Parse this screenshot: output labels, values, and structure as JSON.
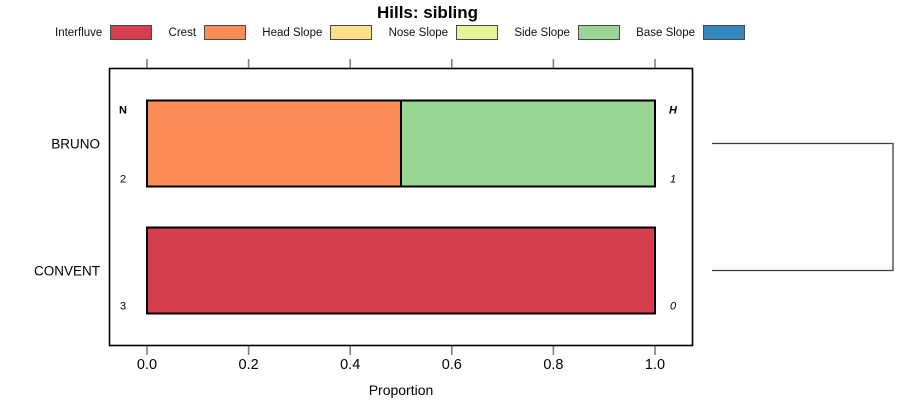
{
  "title": "Hills: sibling",
  "legend": [
    {
      "label": "Interfluve",
      "color": "#d53e4f"
    },
    {
      "label": "Crest",
      "color": "#fc8d59"
    },
    {
      "label": "Head Slope",
      "color": "#fee08b"
    },
    {
      "label": "Nose Slope",
      "color": "#e6f598"
    },
    {
      "label": "Side Slope",
      "color": "#99d594"
    },
    {
      "label": "Base Slope",
      "color": "#3288bd"
    }
  ],
  "chart_data": {
    "type": "bar",
    "orientation": "horizontal",
    "stacked": true,
    "title": "Hills: sibling",
    "xlabel": "Proportion",
    "xlim": [
      0,
      1
    ],
    "xticks": [
      "0.0",
      "0.2",
      "0.4",
      "0.6",
      "0.8",
      "1.0"
    ],
    "xtick_values": [
      0.0,
      0.2,
      0.4,
      0.6,
      0.8,
      1.0
    ],
    "grid": false,
    "legend_position": "top",
    "categories": [
      "BRUNO",
      "CONVENT"
    ],
    "series": [
      {
        "name": "Interfluve",
        "color": "#d53e4f",
        "values": [
          0.0,
          1.0
        ]
      },
      {
        "name": "Crest",
        "color": "#fc8d59",
        "values": [
          0.5,
          0.0
        ]
      },
      {
        "name": "Head Slope",
        "color": "#fee08b",
        "values": [
          0.0,
          0.0
        ]
      },
      {
        "name": "Nose Slope",
        "color": "#e6f598",
        "values": [
          0.0,
          0.0
        ]
      },
      {
        "name": "Side Slope",
        "color": "#99d594",
        "values": [
          0.5,
          0.0
        ]
      },
      {
        "name": "Base Slope",
        "color": "#3288bd",
        "values": [
          0.0,
          0.0
        ]
      }
    ],
    "row_annotations": {
      "left_header": "N",
      "right_header": "H",
      "left_values": [
        "2",
        "3"
      ],
      "right_values": [
        "1",
        "0"
      ]
    },
    "dendrogram": {
      "linked_rows": [
        "BRUNO",
        "CONVENT"
      ]
    }
  },
  "style": {
    "bar_border": "#000000",
    "box_border": "#000000",
    "tick_color": "#808080",
    "dendro_color": "#3d3d3d",
    "text_color": "#000000"
  }
}
